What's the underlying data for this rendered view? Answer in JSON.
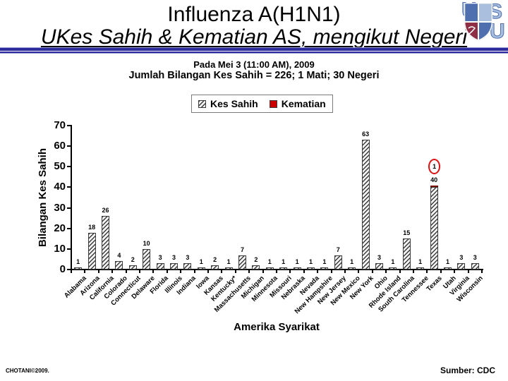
{
  "slide": {
    "title_line1": "Influenza A(H1N1)",
    "title_line2": "UKes Sahih & Kematian AS, mengikut Negeri",
    "subtitle_date": "Pada Mei 3 (11:00 AM), 2009",
    "subtitle_total": "Jumlah Bilangan Kes Sahih = 226; 1 Mati; 30 Negeri",
    "footer_left": "CHOTANI©2009.",
    "footer_right": "Sumber: CDC"
  },
  "logo": {
    "letter_u": "U",
    "letter_s": "S"
  },
  "colors": {
    "rule_dark": "#2b2b9c",
    "rule_light": "#9a9ad0",
    "death_red": "#cc0000",
    "annotation_red": "#dd1111",
    "logo_blue": "#4f6fae",
    "logo_light_blue": "#aabfde",
    "logo_maroon": "#8e2f45"
  },
  "chart_data": {
    "type": "bar",
    "title": "",
    "xlabel": "Amerika Syarikat",
    "ylabel": "Bilangan Kes Sahih",
    "ylim": [
      0,
      70
    ],
    "yticks": [
      0,
      10,
      20,
      30,
      40,
      50,
      60,
      70
    ],
    "grid": false,
    "legend_position": "top-center",
    "categories": [
      "Alabama",
      "Arizona",
      "California",
      "Colorado",
      "Connecticut",
      "Delaware",
      "Florida",
      "Illinois",
      "Indiana",
      "Iowa",
      "Kansas",
      "Kentucky*",
      "Massachusetts",
      "Michigan",
      "Minnesota",
      "Missouri",
      "Nebraska",
      "Nevada",
      "New Hampshire",
      "New Jersey",
      "New Mexico",
      "New York",
      "Ohio",
      "Rhode Island",
      "South Carolina",
      "Tennessee",
      "Texas",
      "Utah",
      "Virginia",
      "Wisconsin"
    ],
    "series": [
      {
        "name": "Kes Sahih",
        "values": [
          1,
          18,
          26,
          4,
          2,
          10,
          3,
          3,
          3,
          1,
          2,
          1,
          7,
          2,
          1,
          1,
          1,
          1,
          1,
          7,
          1,
          63,
          3,
          1,
          15,
          1,
          40,
          1,
          3,
          3
        ]
      },
      {
        "name": "Kematian",
        "values": [
          0,
          0,
          0,
          0,
          0,
          0,
          0,
          0,
          0,
          0,
          0,
          0,
          0,
          0,
          0,
          0,
          0,
          0,
          0,
          0,
          0,
          0,
          0,
          0,
          0,
          0,
          1,
          0,
          0,
          0
        ]
      }
    ],
    "annotations": [
      {
        "category": "Texas",
        "label": "1",
        "style": "red-circle"
      }
    ]
  }
}
